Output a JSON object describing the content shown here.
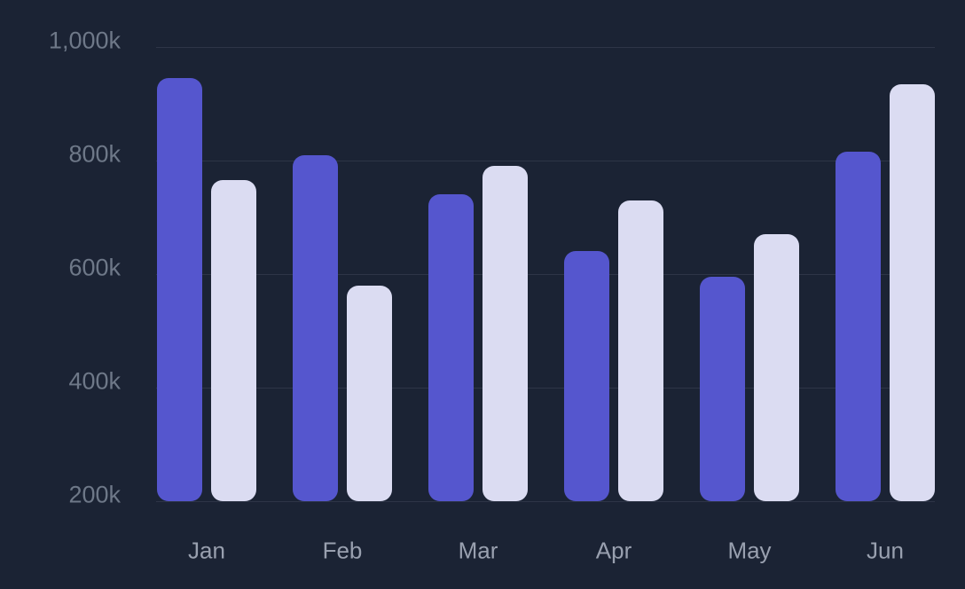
{
  "chart_data": {
    "type": "bar",
    "title": "",
    "xlabel": "",
    "ylabel": "",
    "unit": "k",
    "categories": [
      "Jan",
      "Feb",
      "Mar",
      "Apr",
      "May",
      "Jun"
    ],
    "series": [
      {
        "name": "series-primary",
        "color": "#5556CE",
        "values": [
          945,
          810,
          740,
          640,
          595,
          815
        ]
      },
      {
        "name": "series-secondary",
        "color": "#DBDCF2",
        "values": [
          765,
          580,
          790,
          730,
          670,
          935
        ]
      }
    ],
    "ylim": [
      200,
      1000
    ],
    "yticks": [
      {
        "value": 1000,
        "label": "1,000k"
      },
      {
        "value": 800,
        "label": "800k"
      },
      {
        "value": 600,
        "label": "600k"
      },
      {
        "value": 400,
        "label": "400k"
      },
      {
        "value": 200,
        "label": "200k"
      }
    ],
    "grid": true,
    "legend_position": "none"
  },
  "colors": {
    "background": "#1B2334",
    "gridline": "#2E3547",
    "y_tick_text": "#6E7888",
    "x_tick_text": "#99A0AF",
    "bar_primary": "#5556CE",
    "bar_secondary": "#DBDCF2"
  }
}
